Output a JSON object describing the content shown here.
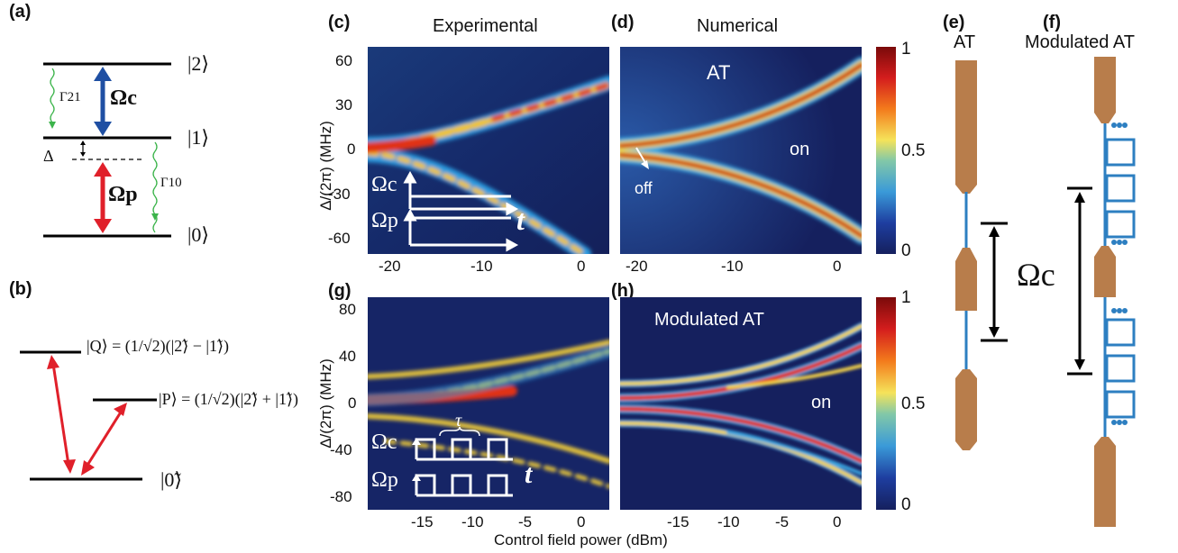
{
  "panels": {
    "a": "(a)",
    "b": "(b)",
    "c": "(c)",
    "d": "(d)",
    "e": "(e)",
    "f": "(f)",
    "g": "(g)",
    "h": "(h)"
  },
  "panel_a": {
    "level2": "|2⟩",
    "level1": "|1⟩",
    "level0": "|0⟩",
    "gamma21": "Γ21",
    "gamma10": "Γ10",
    "omega_c": "Ωc",
    "omega_p": "Ωp",
    "delta": "Δ"
  },
  "panel_b": {
    "state_q": "|Q⟩ = (1/√2)(|2̃⟩ − |1̃⟩)",
    "state_p": "|P⟩ = (1/√2)(|2̃⟩ + |1̃⟩)",
    "state_0": "|0̃⟩"
  },
  "titles": {
    "experimental": "Experimental",
    "numerical": "Numerical",
    "at": "AT",
    "modulated_at": "Modulated AT"
  },
  "annotations": {
    "d_at": "AT",
    "d_on": "on",
    "d_off": "off",
    "h_modulated": "Modulated  AT",
    "h_on": "on",
    "omega_c": "Ωc",
    "omega_p": "Ωp",
    "t": "t",
    "tau": "τ",
    "omega_c_big": "Ωc"
  },
  "axes": {
    "ylabel": "Δ/(2π) (MHz)",
    "xlabel": "Control field power (dBm)",
    "top_yticks": [
      "60",
      "30",
      "0",
      "-30",
      "-60"
    ],
    "top_xticks": [
      "-20",
      "-10",
      "0"
    ],
    "bottom_yticks": [
      "80",
      "40",
      "0",
      "-40",
      "-80"
    ],
    "bottom_xticks": [
      "-15",
      "-10",
      "-5",
      "0"
    ],
    "colorbar_ticks": [
      "1",
      "0.5",
      "0"
    ]
  },
  "colors": {
    "background_heat": "#15205e",
    "arrow_blue": "#1f4fa3",
    "arrow_red": "#e0202a",
    "decay_green": "#3cb44b",
    "waveguide_brown": "#b87d4b",
    "resonator_blue": "#2d7fc1"
  }
}
